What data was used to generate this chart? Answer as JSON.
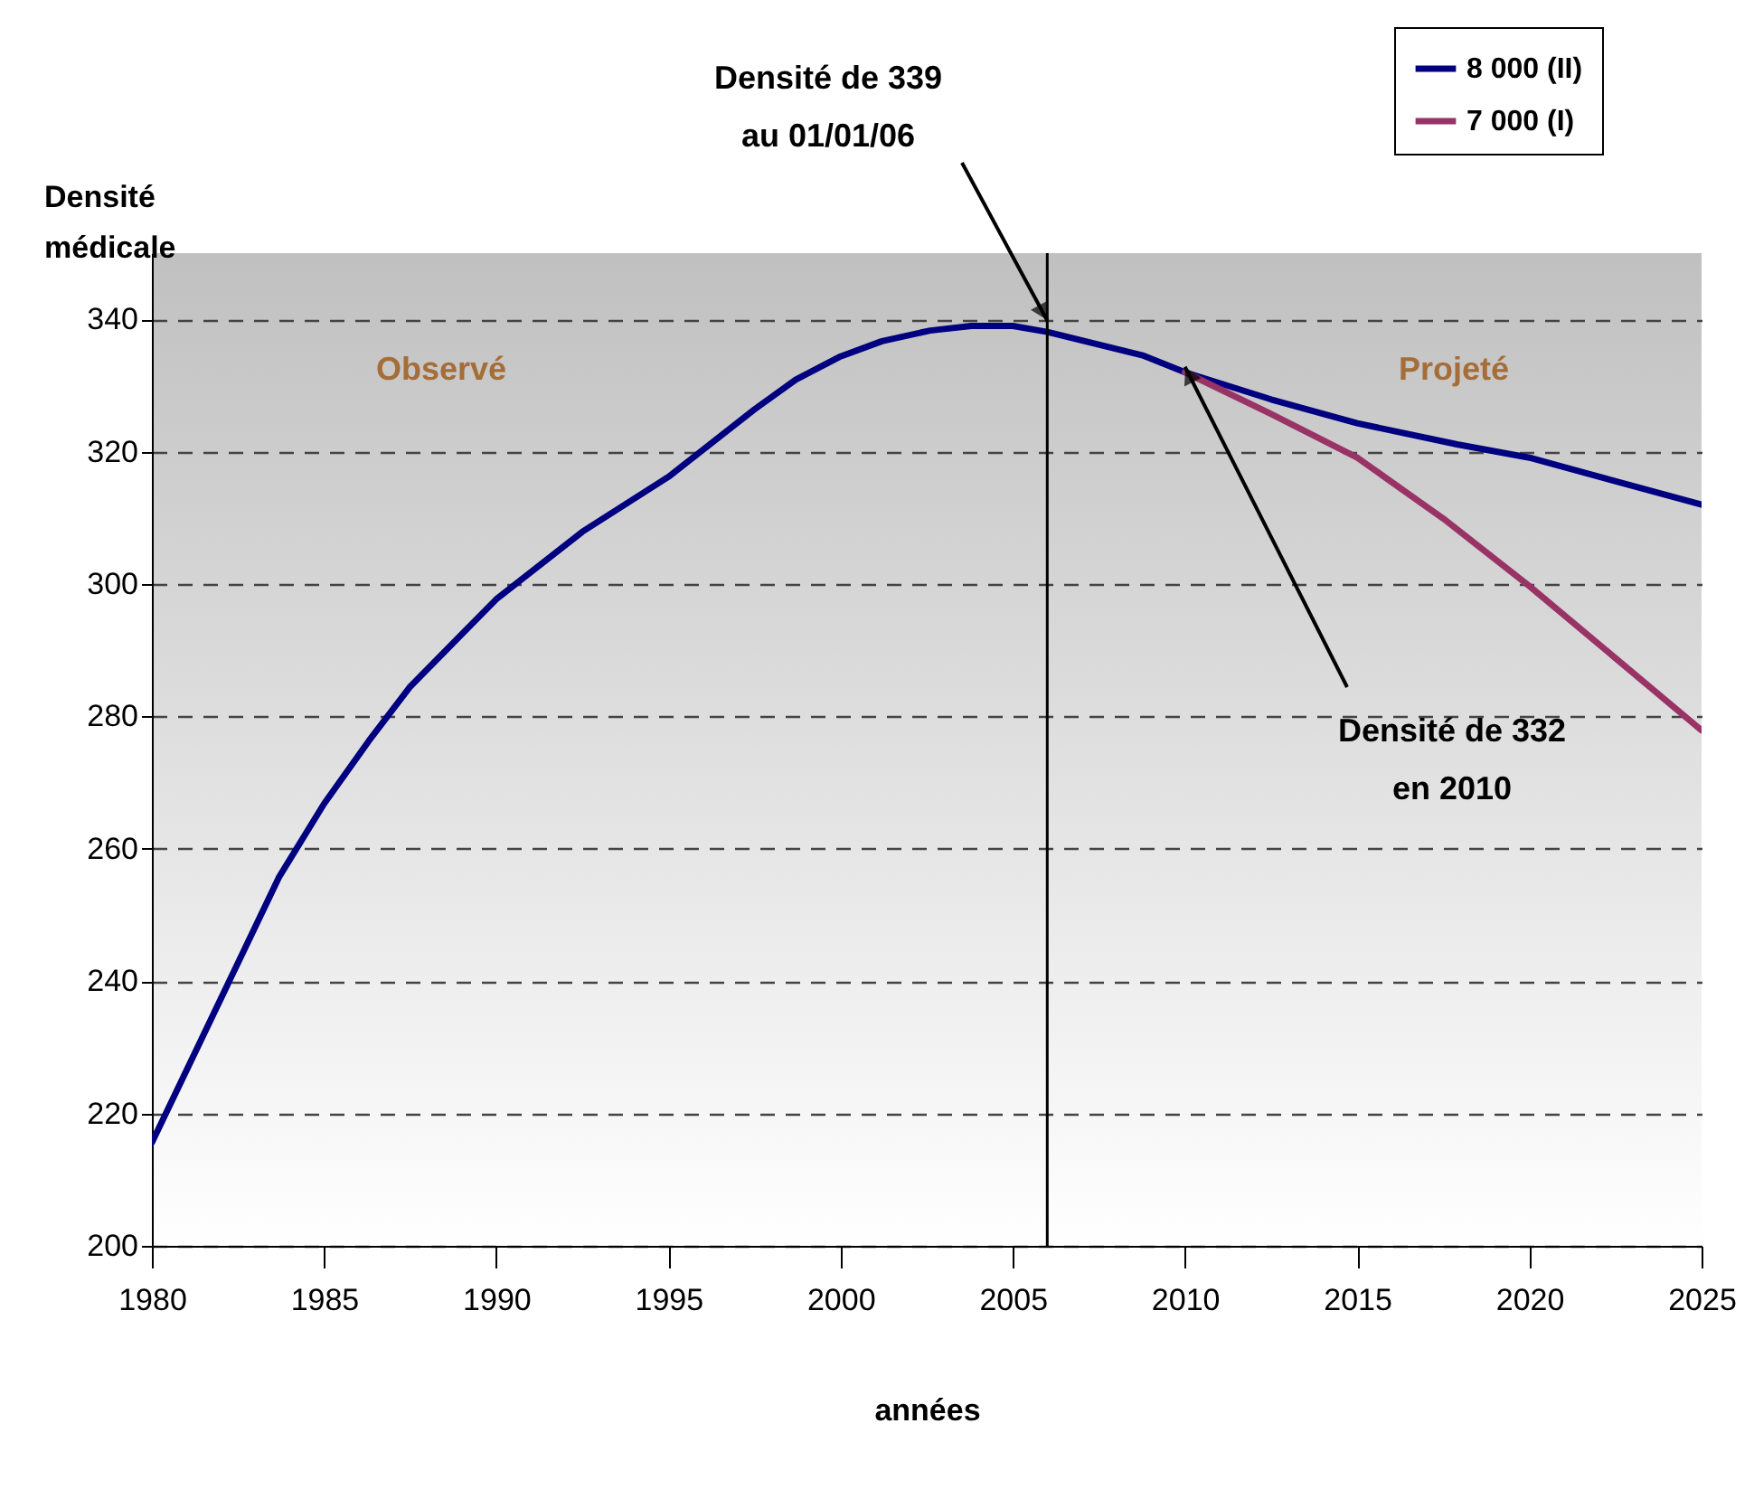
{
  "chart_data": {
    "type": "line",
    "xlabel": "années",
    "ylabel": "Densité\nmédicale",
    "series": [
      {
        "name": "8 000 (II)",
        "color": "#000080",
        "x": [
          1980,
          1983.7,
          1985,
          1986.3,
          1987.5,
          1990,
          1992.5,
          1995,
          1997.5,
          1998.7,
          2000,
          2001.2,
          2002.6,
          2003.8,
          2005,
          2006,
          2008.8,
          2010,
          2012.5,
          2015,
          2017.9,
          2020,
          2025
        ],
        "values": [
          215.6,
          255.8,
          266.8,
          276.3,
          284.5,
          297.7,
          307.9,
          316.2,
          326.4,
          330.9,
          334.4,
          336.7,
          338.3,
          339,
          339,
          338.1,
          334.5,
          332,
          327.9,
          324.3,
          321.1,
          319.1,
          312
        ]
      },
      {
        "name": "7 000 (I)",
        "color": "#993366",
        "x": [
          2010,
          2012.5,
          2015,
          2017.5,
          2020,
          2025
        ],
        "values": [
          332,
          325.7,
          319.1,
          309.9,
          299.7,
          277.9
        ]
      }
    ],
    "xlim": [
      1980,
      2025
    ],
    "xticks": [
      1980,
      1985,
      1990,
      1995,
      2000,
      2005,
      2010,
      2015,
      2020,
      2025
    ],
    "ylim": [
      200,
      350
    ],
    "yticks": [
      200,
      220,
      240,
      260,
      280,
      300,
      320,
      340
    ],
    "grid": "y",
    "legend": "top right",
    "line_style": "solid",
    "marker": "none",
    "ref_lines": [
      {
        "axis": "x",
        "value": 2006,
        "color": "#000000"
      }
    ],
    "annotations": [
      {
        "text": "Densité de 339\nau 01/01/06",
        "x": 2006,
        "y": 339
      },
      {
        "text": "Densité de 332\nen 2010",
        "x": 2010,
        "y": 332
      },
      "Observé",
      "Projeté"
    ]
  }
}
